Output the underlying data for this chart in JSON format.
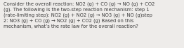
{
  "text": "Consider the overall reaction: NO2 (g) + CO (g) → NO (g) + CO2\n(g). The following is the two-step reaction mechanism: step 1\n(rate-limiting step): NO2 (g) + NO2 (g) → NO3 (g) + NO (g)step\n2: NO3 (g) + CO (g) → NO2 (g) + CO2 (g) Based on this\nmechanism, what’s the rate law for the overall reaction?",
  "font_size": 4.85,
  "font_color": "#3a3a3a",
  "background_color": "#eeecea",
  "fig_width": 2.62,
  "fig_height": 0.69,
  "dpi": 100
}
